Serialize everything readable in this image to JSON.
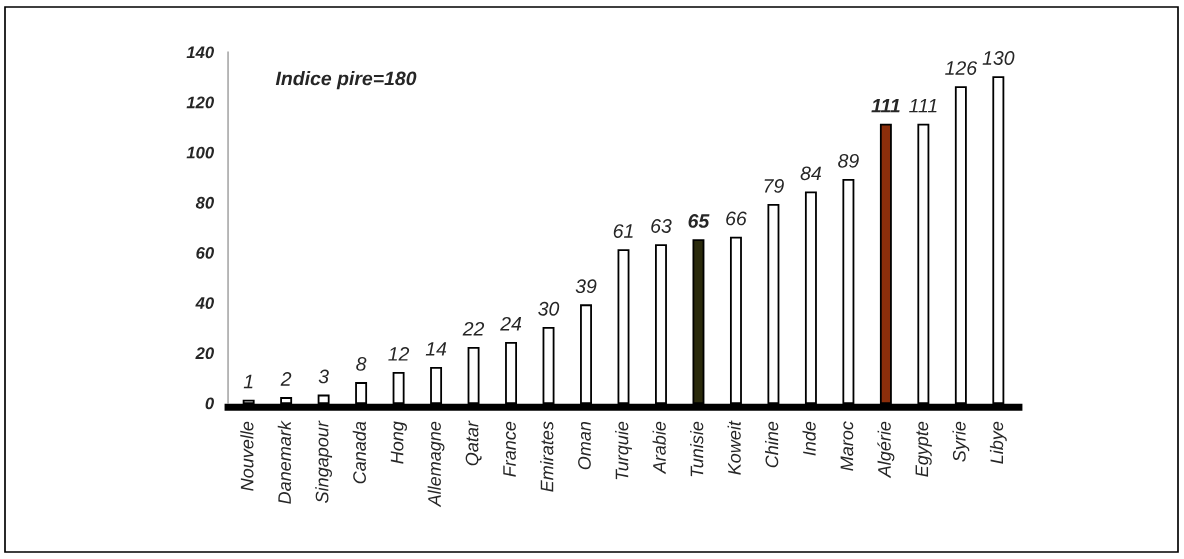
{
  "chart_data": {
    "type": "bar",
    "categories": [
      "Nouvelle",
      "Danemark",
      "Singapour",
      "Canada",
      "Hong",
      "Allemagne",
      "Qatar",
      "France",
      "Emirates",
      "Oman",
      "Turquie",
      "Arabie",
      "Tunisie",
      "Koweit",
      "Chine",
      "Inde",
      "Maroc",
      "Algérie",
      "Egypte",
      "Syrie",
      "Libye"
    ],
    "values": [
      1,
      2,
      3,
      8,
      12,
      14,
      22,
      24,
      30,
      39,
      61,
      63,
      65,
      66,
      79,
      84,
      89,
      111,
      111,
      126,
      130
    ],
    "colors": [
      "#ffffff",
      "#ffffff",
      "#ffffff",
      "#ffffff",
      "#ffffff",
      "#ffffff",
      "#ffffff",
      "#ffffff",
      "#ffffff",
      "#ffffff",
      "#ffffff",
      "#ffffff",
      "#2a2a0c",
      "#ffffff",
      "#ffffff",
      "#ffffff",
      "#ffffff",
      "#8b2e0b",
      "#ffffff",
      "#ffffff",
      "#ffffff"
    ],
    "ylim": [
      0,
      140
    ],
    "yticks": [
      0,
      20,
      40,
      60,
      80,
      100,
      120,
      140
    ],
    "data_labels": true,
    "grid": false,
    "legend": false,
    "annotations": [
      "Indice pire=180"
    ]
  }
}
